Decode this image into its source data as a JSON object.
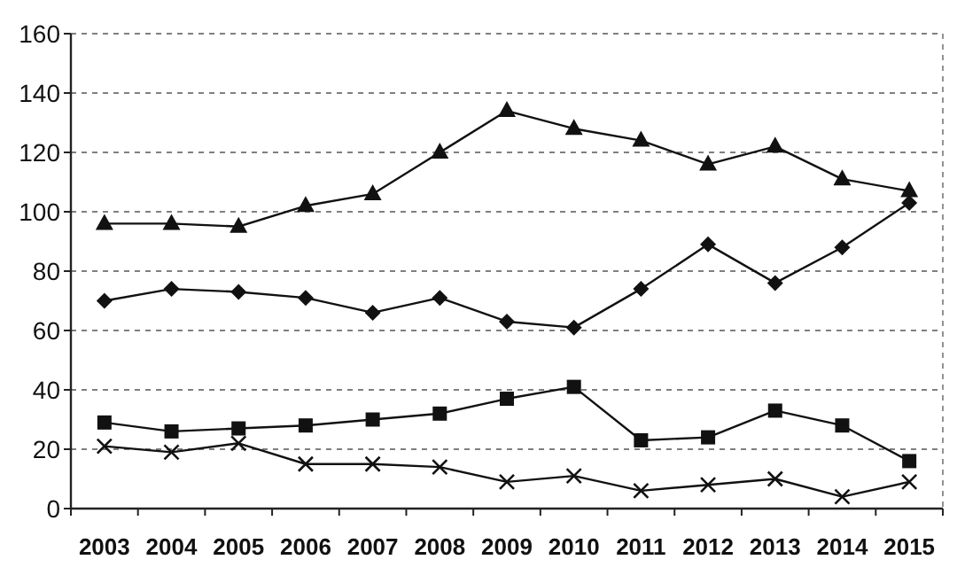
{
  "chart_data": {
    "type": "line",
    "categories": [
      "2003",
      "2004",
      "2005",
      "2006",
      "2007",
      "2008",
      "2009",
      "2010",
      "2011",
      "2012",
      "2013",
      "2014",
      "2015"
    ],
    "series": [
      {
        "color": "#111111",
        "marker": "triangle",
        "values": [
          96,
          96,
          95,
          102,
          106,
          120,
          134,
          128,
          124,
          116,
          122,
          111,
          107
        ]
      },
      {
        "color": "#111111",
        "marker": "diamond",
        "values": [
          70,
          74,
          73,
          71,
          66,
          71,
          63,
          61,
          74,
          89,
          76,
          88,
          103
        ]
      },
      {
        "color": "#111111",
        "marker": "square",
        "values": [
          29,
          26,
          27,
          28,
          30,
          32,
          37,
          41,
          23,
          24,
          33,
          28,
          16
        ]
      },
      {
        "color": "#111111",
        "marker": "cross",
        "values": [
          21,
          19,
          22,
          15,
          15,
          14,
          9,
          11,
          6,
          8,
          10,
          4,
          9
        ]
      }
    ],
    "ylim": [
      0,
      160
    ],
    "yticks": [
      0,
      20,
      40,
      60,
      80,
      100,
      120,
      140,
      160
    ],
    "grid": "y",
    "line_style": "solid"
  }
}
